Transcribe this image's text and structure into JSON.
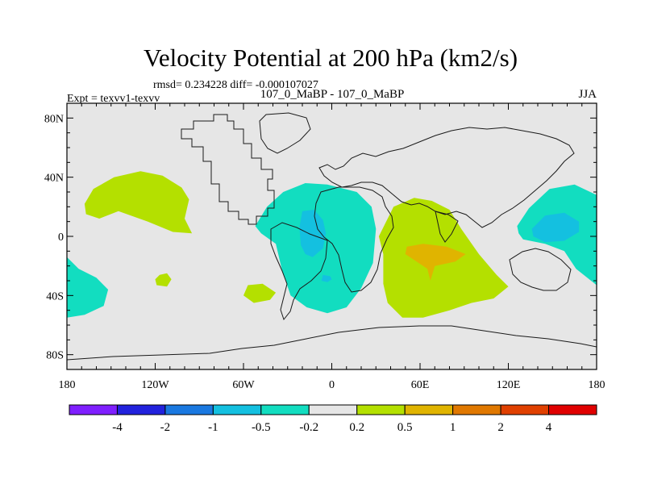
{
  "chart_data": {
    "type": "heatmap",
    "title": "Velocity Potential at 200 hPa (km2/s)",
    "stats_line": "rmsd= 0.234228 diff= -0.000107027",
    "left_label": "Expt = texvv1-texvv",
    "center_label": "107_0_MaBP - 107_0_MaBP",
    "right_label": "JJA",
    "x_ticks": [
      {
        "value": -180,
        "label": "180"
      },
      {
        "value": -120,
        "label": "120W"
      },
      {
        "value": -60,
        "label": "60W"
      },
      {
        "value": 0,
        "label": "0"
      },
      {
        "value": 60,
        "label": "60E"
      },
      {
        "value": 120,
        "label": "120E"
      },
      {
        "value": 180,
        "label": "180"
      }
    ],
    "y_ticks": [
      {
        "value": 80,
        "label": "80N"
      },
      {
        "value": 40,
        "label": "40N"
      },
      {
        "value": 0,
        "label": "0"
      },
      {
        "value": -40,
        "label": "40S"
      },
      {
        "value": -80,
        "label": "80S"
      }
    ],
    "xlim": [
      -180,
      180
    ],
    "ylim": [
      -90,
      90
    ],
    "colorbar": {
      "colors": [
        "#7f1fff",
        "#2222dd",
        "#1a78e0",
        "#14c0e0",
        "#12ddc0",
        "#e6e6e6",
        "#b4e000",
        "#e0b400",
        "#e07800",
        "#e04000",
        "#e00000"
      ],
      "labels": [
        "-4",
        "-2",
        "-1",
        "-0.5",
        "-0.2",
        "0.2",
        "0.5",
        "1",
        "2",
        "4"
      ]
    },
    "anomalies": [
      {
        "name": "north-pacific-positive",
        "level": "0.2 to 0.5",
        "color": "#b4e000",
        "outline": [
          [
            -167,
            15
          ],
          [
            -168,
            22
          ],
          [
            -162,
            32
          ],
          [
            -148,
            40
          ],
          [
            -130,
            44
          ],
          [
            -115,
            41
          ],
          [
            -102,
            33
          ],
          [
            -97,
            25
          ],
          [
            -100,
            12
          ],
          [
            -95,
            2
          ],
          [
            -108,
            3
          ],
          [
            -125,
            10
          ],
          [
            -145,
            17
          ],
          [
            -158,
            12
          ]
        ]
      },
      {
        "name": "africa-indian-ocean-positive",
        "level": "0.2 to 0.5",
        "color": "#b4e000",
        "outline": [
          [
            36,
            8
          ],
          [
            42,
            20
          ],
          [
            56,
            26
          ],
          [
            68,
            24
          ],
          [
            80,
            18
          ],
          [
            88,
            5
          ],
          [
            100,
            -12
          ],
          [
            112,
            -26
          ],
          [
            120,
            -34
          ],
          [
            110,
            -42
          ],
          [
            95,
            -45
          ],
          [
            80,
            -50
          ],
          [
            62,
            -55
          ],
          [
            48,
            -55
          ],
          [
            38,
            -45
          ],
          [
            35,
            -32
          ],
          [
            35,
            -12
          ],
          [
            32,
            0
          ]
        ]
      },
      {
        "name": "indian-ocean-strong-positive",
        "level": "0.5 to 1",
        "color": "#e0b400",
        "outline": [
          [
            51,
            -7
          ],
          [
            62,
            -5
          ],
          [
            78,
            -7
          ],
          [
            91,
            -12
          ],
          [
            84,
            -17
          ],
          [
            70,
            -20
          ],
          [
            67,
            -30
          ],
          [
            65,
            -22
          ],
          [
            56,
            -16
          ],
          [
            50,
            -12
          ]
        ]
      },
      {
        "name": "south-pacific-small-positive",
        "level": "0.2 to 0.5",
        "color": "#b4e000",
        "outline": [
          [
            -117,
            -26
          ],
          [
            -112,
            -25
          ],
          [
            -109,
            -29
          ],
          [
            -112,
            -34
          ],
          [
            -119,
            -33
          ],
          [
            -120,
            -29
          ]
        ]
      },
      {
        "name": "south-america-small-positive",
        "level": "0.2 to 0.5",
        "color": "#b4e000",
        "outline": [
          [
            -57,
            -33
          ],
          [
            -47,
            -32
          ],
          [
            -38,
            -38
          ],
          [
            -42,
            -43
          ],
          [
            -53,
            -45
          ],
          [
            -60,
            -40
          ]
        ]
      },
      {
        "name": "atlantic-negative",
        "level": "-0.5 to -0.2",
        "color": "#12ddc0",
        "outline": [
          [
            -52,
            7
          ],
          [
            -44,
            20
          ],
          [
            -33,
            30
          ],
          [
            -18,
            36
          ],
          [
            -3,
            35
          ],
          [
            17,
            30
          ],
          [
            27,
            20
          ],
          [
            30,
            5
          ],
          [
            28,
            -18
          ],
          [
            20,
            -35
          ],
          [
            10,
            -48
          ],
          [
            -3,
            -52
          ],
          [
            -17,
            -48
          ],
          [
            -28,
            -40
          ],
          [
            -34,
            -22
          ],
          [
            -38,
            -5
          ],
          [
            -48,
            2
          ]
        ]
      },
      {
        "name": "atlantic-strong-negative",
        "level": "-1 to -0.5",
        "color": "#14c0e0",
        "outline": [
          [
            -20,
            17
          ],
          [
            -12,
            18
          ],
          [
            -6,
            11
          ],
          [
            -4,
            2
          ],
          [
            -6,
            -8
          ],
          [
            -13,
            -14
          ],
          [
            -18,
            -12
          ],
          [
            -21,
            -6
          ],
          [
            -22,
            6
          ]
        ]
      },
      {
        "name": "south-atlantic-small-negative",
        "level": "-1 to -0.5",
        "color": "#14c0e0",
        "outline": [
          [
            -6,
            -26
          ],
          [
            -1,
            -27
          ],
          [
            0,
            -29
          ],
          [
            -3,
            -31
          ],
          [
            -7,
            -30
          ]
        ]
      },
      {
        "name": "west-pacific-negative",
        "level": "-0.5 to -0.2",
        "color": "#12ddc0",
        "outline": [
          [
            126,
            7
          ],
          [
            134,
            19
          ],
          [
            148,
            32
          ],
          [
            165,
            35
          ],
          [
            180,
            28
          ],
          [
            180,
            -33
          ],
          [
            166,
            -22
          ],
          [
            158,
            -10
          ],
          [
            145,
            -5
          ],
          [
            130,
            -2
          ],
          [
            127,
            2
          ]
        ]
      },
      {
        "name": "west-pacific-strong-negative",
        "level": "-1 to -0.5",
        "color": "#14c0e0",
        "outline": [
          [
            136,
            5
          ],
          [
            145,
            14
          ],
          [
            158,
            16
          ],
          [
            168,
            10
          ],
          [
            168,
            3
          ],
          [
            158,
            -3
          ],
          [
            145,
            -4
          ],
          [
            137,
            0
          ]
        ]
      },
      {
        "name": "southeast-pacific-negative",
        "level": "-0.5 to -0.2",
        "color": "#12ddc0",
        "outline": [
          [
            -180,
            -14
          ],
          [
            -172,
            -22
          ],
          [
            -160,
            -28
          ],
          [
            -152,
            -36
          ],
          [
            -155,
            -47
          ],
          [
            -168,
            -53
          ],
          [
            -180,
            -55
          ]
        ]
      }
    ]
  }
}
